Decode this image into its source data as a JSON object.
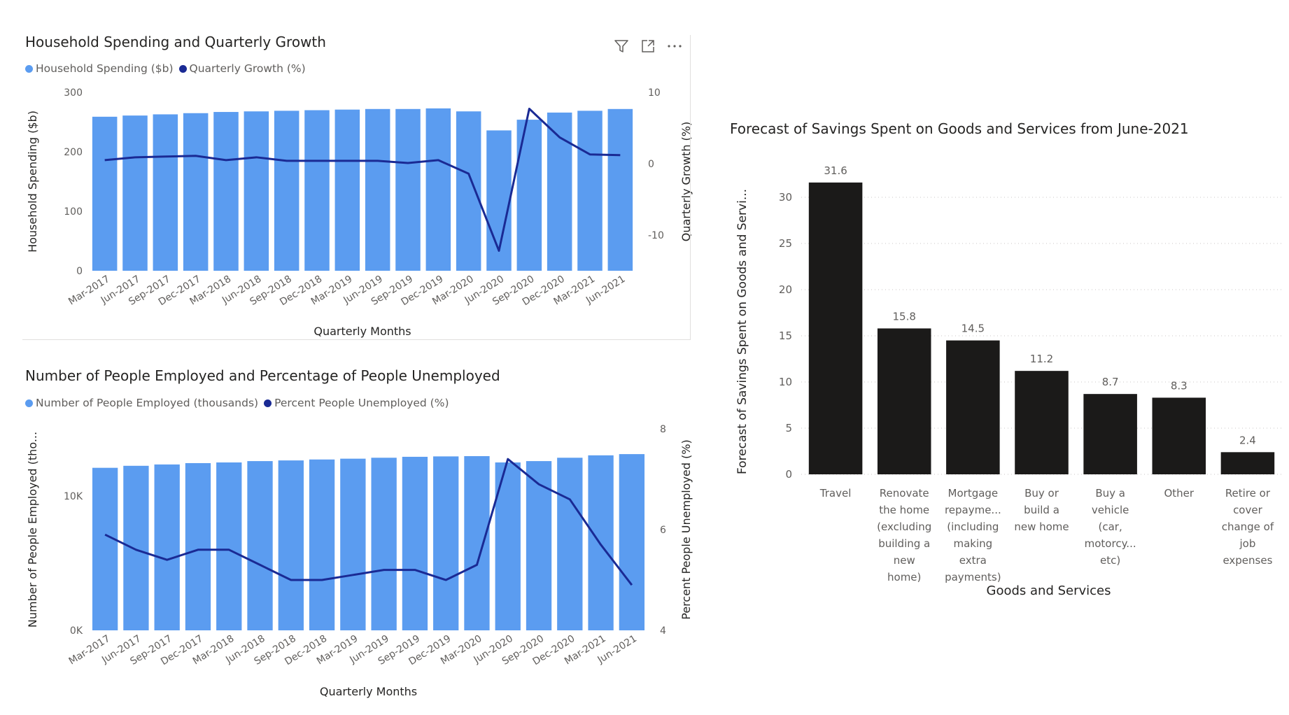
{
  "colors": {
    "bar_blue": "#5b9cf0",
    "line_navy": "#1a2a94",
    "bar_black": "#1b1a19",
    "axis_text": "#605e5c"
  },
  "header_icons": [
    "filter-icon",
    "focus-mode-icon",
    "more-options-icon"
  ],
  "chart_data": [
    {
      "type": "bar",
      "title": "Household Spending and Quarterly Growth",
      "categories": [
        "Mar-2017",
        "Jun-2017",
        "Sep-2017",
        "Dec-2017",
        "Mar-2018",
        "Jun-2018",
        "Sep-2018",
        "Dec-2018",
        "Mar-2019",
        "Jun-2019",
        "Sep-2019",
        "Dec-2019",
        "Mar-2020",
        "Jun-2020",
        "Sep-2020",
        "Dec-2020",
        "Mar-2021",
        "Jun-2021"
      ],
      "series": [
        {
          "name": "Household Spending ($b)",
          "type": "bar",
          "axis": "left",
          "values": [
            259,
            261,
            263,
            265,
            267,
            268,
            269,
            270,
            271,
            272,
            272,
            273,
            268,
            236,
            254,
            266,
            269,
            272
          ]
        },
        {
          "name": "Quarterly Growth (%)",
          "type": "line",
          "axis": "right",
          "values": [
            0.5,
            0.9,
            1.0,
            1.1,
            0.5,
            0.9,
            0.4,
            0.4,
            0.4,
            0.4,
            0.1,
            0.5,
            -1.4,
            -12.2,
            7.7,
            3.7,
            1.3,
            1.2
          ]
        }
      ],
      "xlabel": "Quarterly Months",
      "ylabel": "Household Spending ($b)",
      "y2label": "Quarterly Growth (%)",
      "ylim": [
        0,
        300
      ],
      "y2lim": [
        -15,
        10
      ],
      "yticks": [
        "0",
        "100",
        "200",
        "300"
      ],
      "y2ticks": [
        "-10",
        "0",
        "10"
      ],
      "legend": "top-left",
      "grid": true
    },
    {
      "type": "bar",
      "title": "Number of People Employed and Percentage of People Unemployed",
      "categories": [
        "Mar-2017",
        "Jun-2017",
        "Sep-2017",
        "Dec-2017",
        "Mar-2018",
        "Jun-2018",
        "Sep-2018",
        "Dec-2018",
        "Mar-2019",
        "Jun-2019",
        "Sep-2019",
        "Dec-2019",
        "Mar-2020",
        "Jun-2020",
        "Sep-2020",
        "Dec-2020",
        "Mar-2021",
        "Jun-2021"
      ],
      "series": [
        {
          "name": "Number of People Employed (thousands)",
          "type": "bar",
          "axis": "left",
          "values": [
            12100,
            12250,
            12350,
            12450,
            12500,
            12600,
            12650,
            12720,
            12780,
            12850,
            12920,
            12950,
            12970,
            12500,
            12600,
            12850,
            13030,
            13120
          ]
        },
        {
          "name": "Percent People Unemployed (%)",
          "type": "line",
          "axis": "right",
          "values": [
            5.9,
            5.6,
            5.4,
            5.6,
            5.6,
            5.3,
            5.0,
            5.0,
            5.1,
            5.2,
            5.2,
            5.0,
            5.3,
            7.4,
            6.9,
            6.6,
            5.7,
            4.9
          ]
        }
      ],
      "xlabel": "Quarterly Months",
      "ylabel": "Number of People Employed (tho...",
      "y2label": "Percent People Unemployed (%)",
      "ylim": [
        0,
        15000
      ],
      "y2lim": [
        4,
        8
      ],
      "yticks": [
        "0K",
        "10K"
      ],
      "y2ticks": [
        "4",
        "6",
        "8"
      ],
      "legend": "top-left",
      "grid": true
    },
    {
      "type": "bar",
      "title": "Forecast of Savings Spent on Goods and Services from June-2021",
      "categories": [
        [
          "Travel"
        ],
        [
          "Renovate",
          "the home",
          "(excluding",
          "building a",
          "new",
          "home)"
        ],
        [
          "Mortgage",
          "repayme...",
          "(including",
          "making",
          "extra",
          "payments)"
        ],
        [
          "Buy or",
          "build a",
          "new home"
        ],
        [
          "Buy a",
          "vehicle",
          "(car,",
          "motorcy...",
          "etc)"
        ],
        [
          "Other"
        ],
        [
          "Retire or",
          "cover",
          "change of",
          "job",
          "expenses"
        ]
      ],
      "values": [
        31.6,
        15.8,
        14.5,
        11.2,
        8.7,
        8.3,
        2.4
      ],
      "data_labels": [
        "31.6",
        "15.8",
        "14.5",
        "11.2",
        "8.7",
        "8.3",
        "2.4"
      ],
      "xlabel": "Goods and Services",
      "ylabel": "Forecast of Savings Spent on Goods and Servi...",
      "ylim": [
        0,
        35
      ],
      "yticks": [
        "0",
        "5",
        "10",
        "15",
        "20",
        "25",
        "30"
      ],
      "grid": true
    }
  ]
}
